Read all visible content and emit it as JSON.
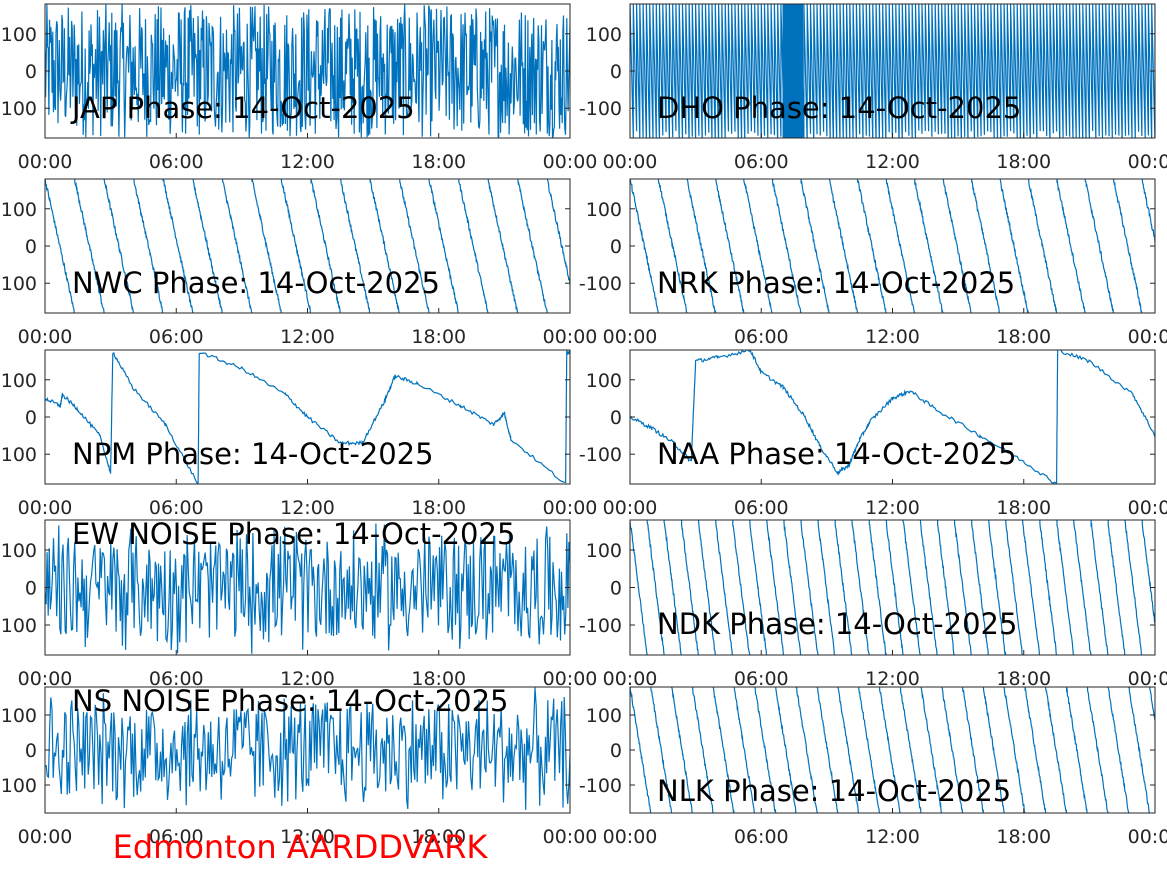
{
  "figure": {
    "footer": "Edmonton AARDDVARK",
    "footer_color": "#ff0000",
    "line_color": "#0072bd"
  },
  "chart_data": [
    {
      "type": "line",
      "title": "JAP Phase: 14-Oct-2025",
      "x": [
        "00:00",
        "24:00"
      ],
      "xticks": [
        "00:00",
        "06:00",
        "12:00",
        "18:00",
        "00:00"
      ],
      "yticks": [
        "100",
        "0",
        "-100"
      ],
      "ylim": [
        -180,
        180
      ],
      "pattern": "noise",
      "density": 0.9
    },
    {
      "type": "line",
      "title": "DHO Phase: 14-Oct-2025",
      "x": [
        "00:00",
        "24:00"
      ],
      "xticks": [
        "00:00",
        "06:00",
        "12:00",
        "18:00",
        "00:00"
      ],
      "yticks": [
        "100",
        "0",
        "-100"
      ],
      "ylim": [
        -180,
        180
      ],
      "pattern": "dense-wrap",
      "period_min": 9
    },
    {
      "type": "line",
      "title": "NWC Phase: 14-Oct-2025",
      "x": [
        "00:00",
        "24:00"
      ],
      "xticks": [
        "00:00",
        "06:00",
        "12:00",
        "18:00",
        "00:00"
      ],
      "yticks": [
        "100",
        "0",
        "-100"
      ],
      "ylim": [
        -180,
        180
      ],
      "pattern": "sawtooth",
      "period_h": 1.35
    },
    {
      "type": "line",
      "title": "NRK Phase: 14-Oct-2025",
      "x": [
        "00:00",
        "24:00"
      ],
      "xticks": [
        "00:00",
        "06:00",
        "12:00",
        "18:00",
        "00:00"
      ],
      "yticks": [
        "100",
        "0",
        "-100"
      ],
      "ylim": [
        -180,
        180
      ],
      "pattern": "sawtooth",
      "period_h": 1.3
    },
    {
      "type": "line",
      "title": "NPM Phase: 14-Oct-2025",
      "x": [
        "00:00",
        "24:00"
      ],
      "xticks": [
        "00:00",
        "06:00",
        "12:00",
        "18:00",
        "00:00"
      ],
      "yticks": [
        "100",
        "0",
        "-100"
      ],
      "ylim": [
        -180,
        180
      ],
      "pattern": "slow",
      "points": [
        [
          0,
          50
        ],
        [
          0.7,
          30
        ],
        [
          0.8,
          60
        ],
        [
          1.5,
          20
        ],
        [
          2.5,
          -50
        ],
        [
          3.0,
          -150
        ],
        [
          3.1,
          175
        ],
        [
          4,
          80
        ],
        [
          5.5,
          -20
        ],
        [
          7.0,
          -180
        ],
        [
          7.05,
          175
        ],
        [
          9,
          130
        ],
        [
          11,
          60
        ],
        [
          12,
          0
        ],
        [
          13.5,
          -70
        ],
        [
          14.5,
          -70
        ],
        [
          15.5,
          40
        ],
        [
          16,
          110
        ],
        [
          17,
          90
        ],
        [
          19,
          30
        ],
        [
          20.5,
          -20
        ],
        [
          21,
          10
        ],
        [
          21.3,
          -60
        ],
        [
          23.8,
          -180
        ],
        [
          23.85,
          175
        ],
        [
          24,
          170
        ]
      ]
    },
    {
      "type": "line",
      "title": "NAA Phase: 14-Oct-2025",
      "x": [
        "00:00",
        "24:00"
      ],
      "xticks": [
        "00:00",
        "06:00",
        "12:00",
        "18:00",
        "00:00"
      ],
      "yticks": [
        "100",
        "0",
        "-100"
      ],
      "ylim": [
        -180,
        180
      ],
      "pattern": "slow",
      "points": [
        [
          0,
          0
        ],
        [
          1,
          -30
        ],
        [
          2,
          -70
        ],
        [
          2.8,
          -120
        ],
        [
          3,
          150
        ],
        [
          4,
          160
        ],
        [
          5.5,
          180
        ],
        [
          6,
          120
        ],
        [
          7,
          80
        ],
        [
          8,
          0
        ],
        [
          8.7,
          -80
        ],
        [
          9.5,
          -150
        ],
        [
          10,
          -130
        ],
        [
          10.5,
          -60
        ],
        [
          11,
          -10
        ],
        [
          12,
          50
        ],
        [
          12.8,
          70
        ],
        [
          14,
          20
        ],
        [
          16,
          -50
        ],
        [
          18,
          -120
        ],
        [
          19.5,
          -180
        ],
        [
          19.55,
          180
        ],
        [
          21,
          150
        ],
        [
          23,
          60
        ],
        [
          24,
          -50
        ]
      ]
    },
    {
      "type": "line",
      "title": "EW NOISE Phase: 14-Oct-2025",
      "x": [
        "00:00",
        "24:00"
      ],
      "xticks": [
        "00:00",
        "06:00",
        "12:00",
        "18:00",
        "00:00"
      ],
      "yticks": [
        "100",
        "0",
        "-100"
      ],
      "ylim": [
        -180,
        180
      ],
      "pattern": "noise",
      "density": 0.55
    },
    {
      "type": "line",
      "title": "NDK Phase: 14-Oct-2025",
      "x": [
        "00:00",
        "24:00"
      ],
      "xticks": [
        "00:00",
        "06:00",
        "12:00",
        "18:00",
        "00:00"
      ],
      "yticks": [
        "100",
        "0",
        "-100"
      ],
      "ylim": [
        -180,
        180
      ],
      "pattern": "sawtooth",
      "period_h": 0.78
    },
    {
      "type": "line",
      "title": "NS NOISE Phase: 14-Oct-2025",
      "x": [
        "00:00",
        "24:00"
      ],
      "xticks": [
        "00:00",
        "06:00",
        "12:00",
        "18:00",
        "00:00"
      ],
      "yticks": [
        "100",
        "0",
        "-100"
      ],
      "ylim": [
        -180,
        180
      ],
      "pattern": "noise",
      "density": 0.5
    },
    {
      "type": "line",
      "title": "NLK Phase: 14-Oct-2025",
      "x": [
        "00:00",
        "24:00"
      ],
      "xticks": [
        "00:00",
        "06:00",
        "12:00",
        "18:00",
        "00:00"
      ],
      "yticks": [
        "100",
        "0",
        "-100"
      ],
      "ylim": [
        -180,
        180
      ],
      "pattern": "sawtooth",
      "period_h": 0.95
    }
  ]
}
